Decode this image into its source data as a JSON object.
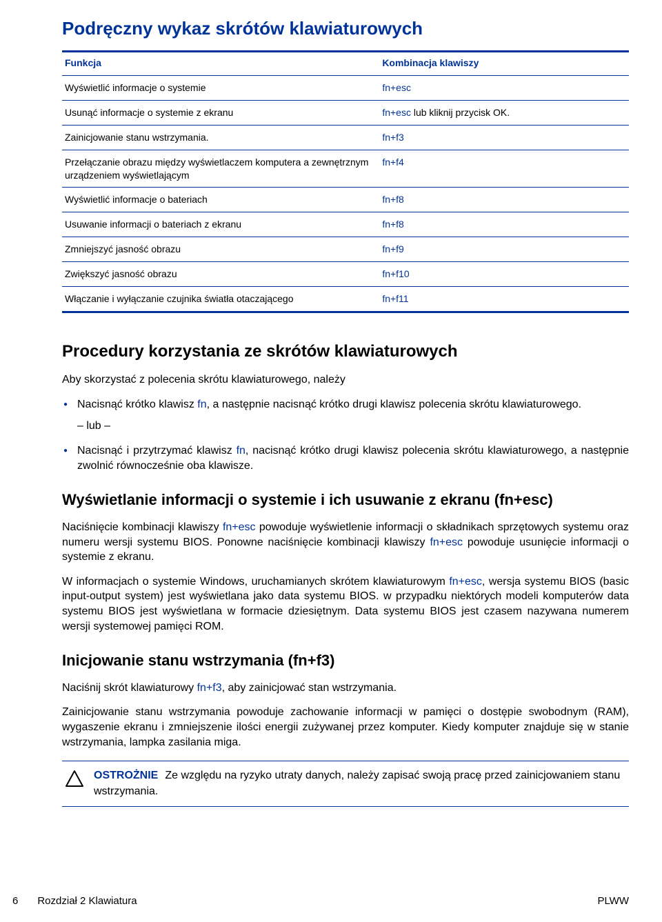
{
  "colors": {
    "accent": "#003399",
    "text": "#000000",
    "background": "#ffffff"
  },
  "title": "Podręczny wykaz skrótów klawiaturowych",
  "table": {
    "headers": {
      "func": "Funkcja",
      "combo": "Kombinacja klawiszy"
    },
    "rows": [
      {
        "func": "Wyświetlić informacje o systemie",
        "kbd": "fn+esc",
        "suffix": ""
      },
      {
        "func": "Usunąć informacje o systemie z ekranu",
        "kbd": "fn+esc",
        "suffix": " lub kliknij przycisk OK."
      },
      {
        "func": "Zainicjowanie stanu wstrzymania.",
        "kbd": "fn+f3",
        "suffix": ""
      },
      {
        "func": "Przełączanie obrazu między wyświetlaczem komputera a zewnętrznym urządzeniem wyświetlającym",
        "kbd": "fn+f4",
        "suffix": ""
      },
      {
        "func": "Wyświetlić informacje o bateriach",
        "kbd": "fn+f8",
        "suffix": ""
      },
      {
        "func": "Usuwanie informacji o bateriach z ekranu",
        "kbd": "fn+f8",
        "suffix": ""
      },
      {
        "func": "Zmniejszyć jasność obrazu",
        "kbd": "fn+f9",
        "suffix": ""
      },
      {
        "func": "Zwiększyć jasność obrazu",
        "kbd": "fn+f10",
        "suffix": ""
      },
      {
        "func": "Włączanie i wyłączanie czujnika światła otaczającego",
        "kbd": "fn+f11",
        "suffix": ""
      }
    ]
  },
  "section1": {
    "heading": "Procedury korzystania ze skrótów klawiaturowych",
    "intro": "Aby skorzystać z polecenia skrótu klawiaturowego, należy",
    "bullet1_pre": "Nacisnąć krótko klawisz ",
    "bullet1_kbd": "fn",
    "bullet1_post": ", a następnie nacisnąć krótko drugi klawisz polecenia skrótu klawiaturowego.",
    "or": "– lub –",
    "bullet2_pre": "Nacisnąć i przytrzymać klawisz ",
    "bullet2_kbd": "fn",
    "bullet2_post": ", nacisnąć krótko drugi klawisz polecenia skrótu klawiaturowego, a następnie zwolnić równocześnie oba klawisze."
  },
  "section2": {
    "heading": "Wyświetlanie informacji o systemie i ich usuwanie z ekranu (fn+esc)",
    "p1_a": "Naciśnięcie kombinacji klawiszy ",
    "p1_kbd1": "fn+esc",
    "p1_b": " powoduje wyświetlenie informacji o składnikach sprzętowych systemu oraz numeru wersji systemu BIOS. Ponowne naciśnięcie kombinacji klawiszy ",
    "p1_kbd2": "fn+esc",
    "p1_c": " powoduje usunięcie informacji o systemie z ekranu.",
    "p2_a": "W informacjach o systemie Windows, uruchamianych skrótem klawiaturowym ",
    "p2_kbd": "fn+esc",
    "p2_b": ", wersja systemu BIOS (basic input-output system) jest wyświetlana jako data systemu BIOS. w przypadku niektórych modeli komputerów data systemu BIOS jest wyświetlana w formacie dziesiętnym. Data systemu BIOS jest czasem nazywana numerem wersji systemowej pamięci ROM."
  },
  "section3": {
    "heading": "Inicjowanie stanu wstrzymania (fn+f3)",
    "p1_a": "Naciśnij skrót klawiaturowy ",
    "p1_kbd": "fn+f3",
    "p1_b": ", aby zainicjować stan wstrzymania.",
    "p2": "Zainicjowanie stanu wstrzymania powoduje zachowanie informacji w pamięci o dostępie swobodnym (RAM), wygaszenie ekranu i zmniejszenie ilości energii zużywanej przez komputer. Kiedy komputer znajduje się w stanie wstrzymania, lampka zasilania miga.",
    "caution_label": "OSTROŻNIE",
    "caution_text": "Ze względu na ryzyko utraty danych, należy zapisać swoją pracę przed zainicjowaniem stanu wstrzymania."
  },
  "footer": {
    "page_num": "6",
    "chapter": "Rozdział 2   Klawiatura",
    "right": "PLWW"
  }
}
